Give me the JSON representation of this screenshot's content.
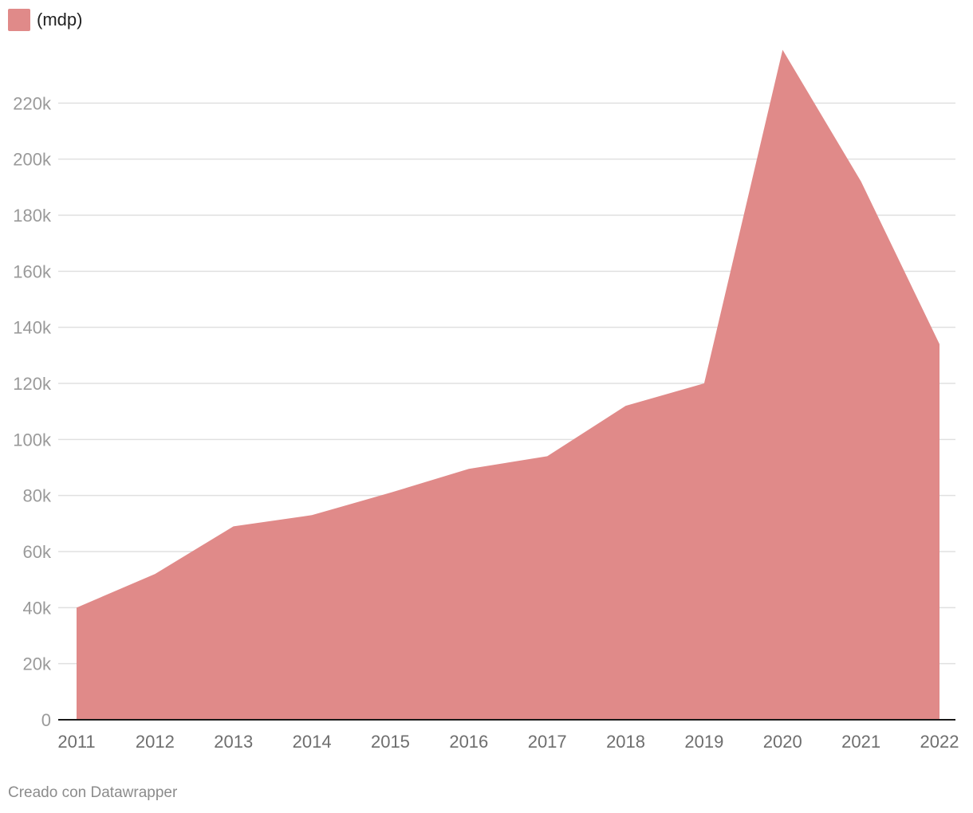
{
  "legend": {
    "label": "(mdp)",
    "color": "#e08a89"
  },
  "chart_data": {
    "type": "area",
    "x": [
      "2011",
      "2012",
      "2013",
      "2014",
      "2015",
      "2016",
      "2017",
      "2018",
      "2019",
      "2020",
      "2021",
      "2022"
    ],
    "series": [
      {
        "name": "(mdp)",
        "color": "#e08a89",
        "values": [
          40000,
          52000,
          69000,
          73000,
          81000,
          89500,
          94000,
          112000,
          120000,
          239000,
          192000,
          134000
        ]
      }
    ],
    "ylim": [
      0,
      240000
    ],
    "yticks": [
      0,
      20000,
      40000,
      60000,
      80000,
      100000,
      120000,
      140000,
      160000,
      180000,
      200000,
      220000
    ],
    "ytick_labels": [
      "0",
      "20k",
      "40k",
      "60k",
      "80k",
      "100k",
      "120k",
      "140k",
      "160k",
      "180k",
      "200k",
      "220k"
    ],
    "grid": true
  },
  "footer": {
    "credit": "Creado con Datawrapper"
  }
}
